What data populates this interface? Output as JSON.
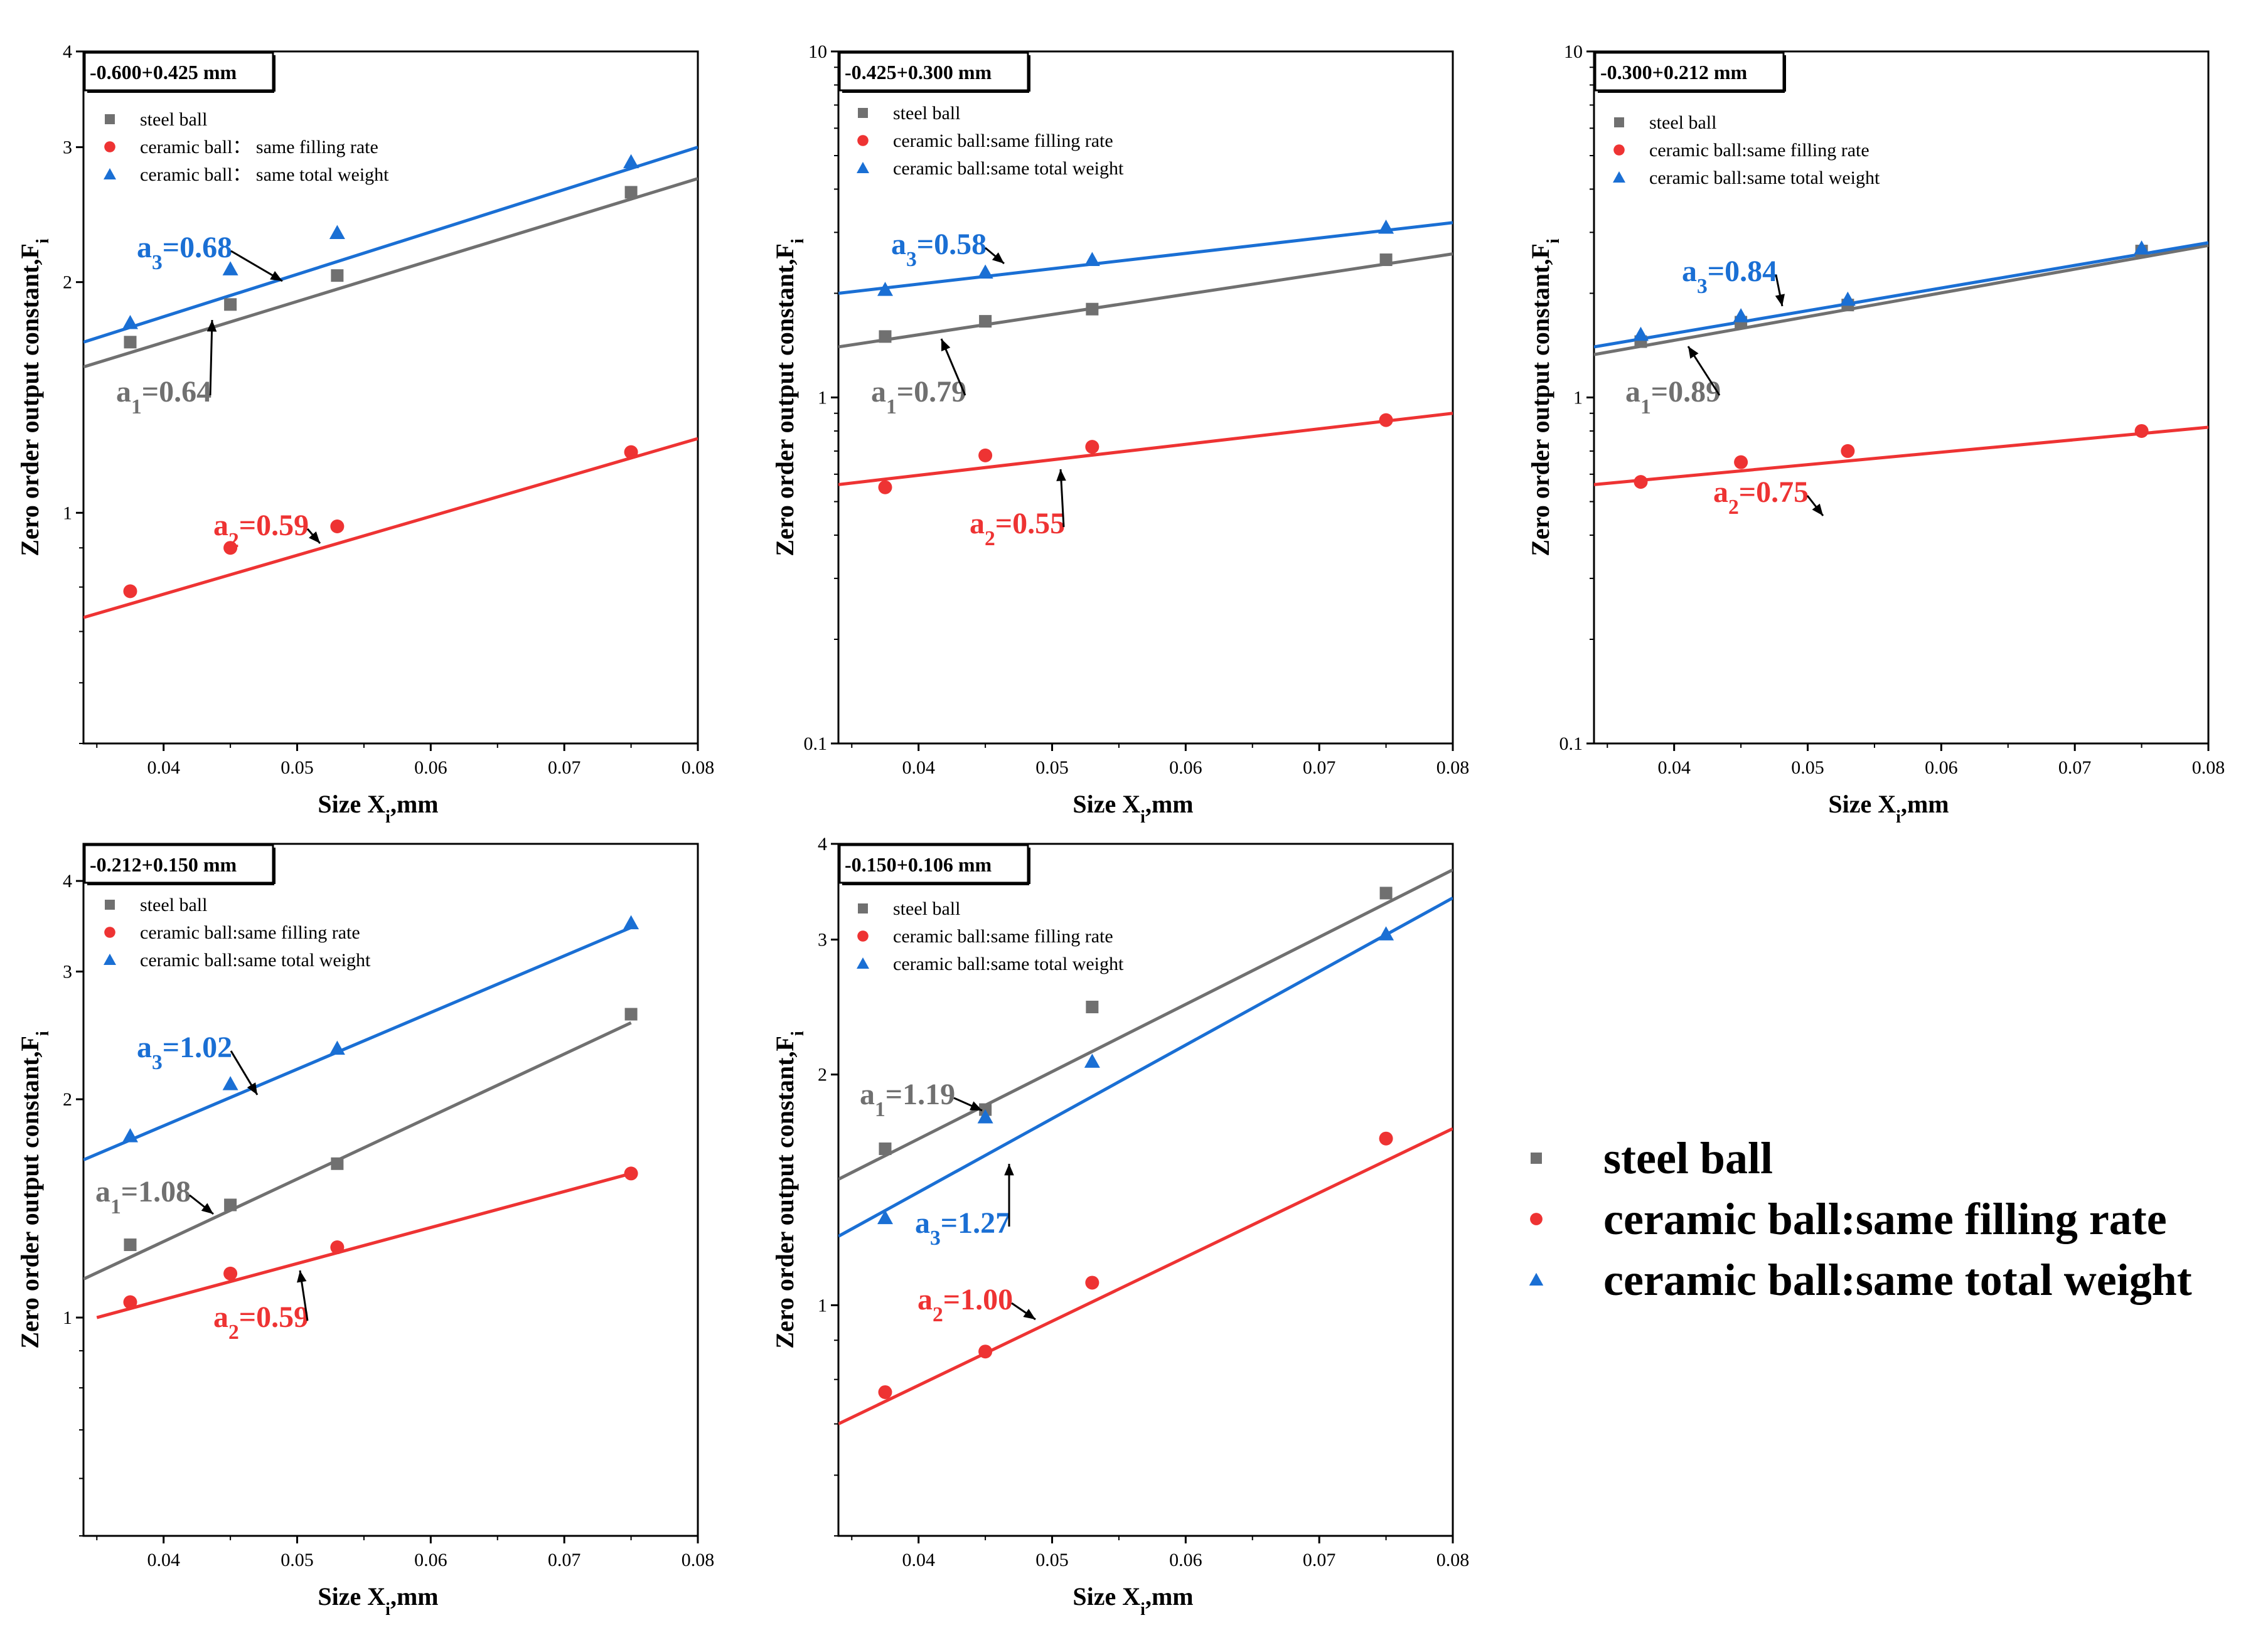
{
  "colors": {
    "steel": "#707070",
    "filling": "#ee3333",
    "weight": "#1a6fd4",
    "axis": "#000000"
  },
  "figure_legend": {
    "steel": "steel ball",
    "filling": "ceramic ball:same filling rate",
    "weight": "ceramic ball:same total weight"
  },
  "chart_data": [
    {
      "type": "scatter",
      "title": "-0.600+0.425 mm",
      "xlabel_main": "Size X",
      "xlabel_sub": "i",
      "xlabel_tail": ",mm",
      "ylabel_main": "Zero order output constant,F",
      "ylabel_sub": "i",
      "xlim": [
        0.034,
        0.08
      ],
      "ylim": [
        0.5,
        4
      ],
      "yscale": "log",
      "xticks": [
        0.04,
        0.05,
        0.06,
        0.07,
        0.08
      ],
      "xtick_labels": [
        "0.04",
        "0.05",
        "0.06",
        "0.07",
        "0.08"
      ],
      "yticks": [
        1,
        2,
        3,
        4
      ],
      "ytick_labels": [
        "1",
        "2",
        "3",
        "4"
      ],
      "legend": [
        "steel ball",
        "ceramic ball： same filling rate",
        "ceramic ball： same total weight"
      ],
      "x": [
        0.0375,
        0.045,
        0.053,
        0.075
      ],
      "series": [
        {
          "name": "steel ball",
          "key": "steel",
          "marker": "square",
          "values": [
            1.67,
            1.87,
            2.04,
            2.62
          ],
          "fit": [
            [
              0.034,
              1.55
            ],
            [
              0.08,
              2.73
            ]
          ]
        },
        {
          "name": "ceramic ball: same filling rate",
          "key": "filling",
          "marker": "circle",
          "values": [
            0.79,
            0.9,
            0.96,
            1.2
          ],
          "fit": [
            [
              0.034,
              0.73
            ],
            [
              0.08,
              1.25
            ]
          ]
        },
        {
          "name": "ceramic ball: same total weight",
          "key": "weight",
          "marker": "triangle",
          "values": [
            1.77,
            2.08,
            2.32,
            2.87
          ],
          "fit": [
            [
              0.034,
              1.67
            ],
            [
              0.08,
              3.0
            ]
          ]
        }
      ],
      "annotations": [
        {
          "key": "weight",
          "text_main": "a",
          "text_sub": "3",
          "text_tail": "=0.68"
        },
        {
          "key": "steel",
          "text_main": "a",
          "text_sub": "1",
          "text_tail": "=0.64"
        },
        {
          "key": "filling",
          "text_main": "a",
          "text_sub": "2",
          "text_tail": "=0.59"
        }
      ]
    },
    {
      "type": "scatter",
      "title": "-0.425+0.300 mm",
      "xlabel_main": "Size X",
      "xlabel_sub": "i",
      "xlabel_tail": ",mm",
      "ylabel_main": "Zero order output constant,F",
      "ylabel_sub": "i",
      "xlim": [
        0.034,
        0.08
      ],
      "ylim": [
        0.1,
        10
      ],
      "yscale": "log",
      "xticks": [
        0.04,
        0.05,
        0.06,
        0.07,
        0.08
      ],
      "xtick_labels": [
        "0.04",
        "0.05",
        "0.06",
        "0.07",
        "0.08"
      ],
      "yticks": [
        0.1,
        1,
        10
      ],
      "ytick_labels": [
        "0.1",
        "1",
        "10"
      ],
      "legend": [
        "steel ball",
        "ceramic ball:same filling rate",
        "ceramic ball:same total weight"
      ],
      "x": [
        0.0375,
        0.045,
        0.053,
        0.075
      ],
      "series": [
        {
          "name": "steel ball",
          "key": "steel",
          "marker": "square",
          "values": [
            1.5,
            1.66,
            1.8,
            2.5
          ],
          "fit": [
            [
              0.034,
              1.4
            ],
            [
              0.08,
              2.6
            ]
          ]
        },
        {
          "name": "ceramic ball:same filling rate",
          "key": "filling",
          "marker": "circle",
          "values": [
            0.55,
            0.68,
            0.72,
            0.86
          ],
          "fit": [
            [
              0.034,
              0.56
            ],
            [
              0.08,
              0.9
            ]
          ]
        },
        {
          "name": "ceramic ball:same total weight",
          "key": "weight",
          "marker": "triangle",
          "values": [
            2.05,
            2.3,
            2.5,
            3.1
          ],
          "fit": [
            [
              0.034,
              2.0
            ],
            [
              0.08,
              3.2
            ]
          ]
        }
      ],
      "annotations": [
        {
          "key": "weight",
          "text_main": "a",
          "text_sub": "3",
          "text_tail": "=0.58"
        },
        {
          "key": "steel",
          "text_main": "a",
          "text_sub": "1",
          "text_tail": "=0.79"
        },
        {
          "key": "filling",
          "text_main": "a",
          "text_sub": "2",
          "text_tail": "=0.55"
        }
      ]
    },
    {
      "type": "scatter",
      "title": "-0.300+0.212 mm",
      "xlabel_main": "Size X",
      "xlabel_sub": "i",
      "xlabel_tail": ",mm",
      "ylabel_main": "Zero order output constant,F",
      "ylabel_sub": "i",
      "xlim": [
        0.034,
        0.08
      ],
      "ylim": [
        0.1,
        10
      ],
      "yscale": "log",
      "xticks": [
        0.04,
        0.05,
        0.06,
        0.07,
        0.08
      ],
      "xtick_labels": [
        "0.04",
        "0.05",
        "0.06",
        "0.07",
        "0.08"
      ],
      "yticks": [
        0.1,
        1,
        10
      ],
      "ytick_labels": [
        "0.1",
        "1",
        "10"
      ],
      "legend": [
        "steel ball",
        "ceramic ball:same filling rate",
        "ceramic ball:same total weight"
      ],
      "x": [
        0.0375,
        0.045,
        0.053,
        0.075
      ],
      "series": [
        {
          "name": "steel ball",
          "key": "steel",
          "marker": "square",
          "values": [
            1.45,
            1.65,
            1.85,
            2.65
          ],
          "fit": [
            [
              0.034,
              1.33
            ],
            [
              0.08,
              2.75
            ]
          ]
        },
        {
          "name": "ceramic ball:same filling rate",
          "key": "filling",
          "marker": "circle",
          "values": [
            0.57,
            0.65,
            0.7,
            0.8
          ],
          "fit": [
            [
              0.034,
              0.56
            ],
            [
              0.08,
              0.82
            ]
          ]
        },
        {
          "name": "ceramic ball:same total weight",
          "key": "weight",
          "marker": "triangle",
          "values": [
            1.52,
            1.72,
            1.92,
            2.7
          ],
          "fit": [
            [
              0.034,
              1.4
            ],
            [
              0.08,
              2.8
            ]
          ]
        }
      ],
      "annotations": [
        {
          "key": "weight",
          "text_main": "a",
          "text_sub": "3",
          "text_tail": "=0.84"
        },
        {
          "key": "steel",
          "text_main": "a",
          "text_sub": "1",
          "text_tail": "=0.89"
        },
        {
          "key": "filling",
          "text_main": "a",
          "text_sub": "2",
          "text_tail": "=0.75"
        }
      ]
    },
    {
      "type": "scatter",
      "title": "-0.212+0.150 mm",
      "xlabel_main": "Size X",
      "xlabel_sub": "i",
      "xlabel_tail": ",mm",
      "ylabel_main": "Zero order output constant,F",
      "ylabel_sub": "i",
      "xlim": [
        0.034,
        0.08
      ],
      "ylim": [
        0.5,
        4.5
      ],
      "yscale": "log",
      "xticks": [
        0.04,
        0.05,
        0.06,
        0.07,
        0.08
      ],
      "xtick_labels": [
        "0.04",
        "0.05",
        "0.06",
        "0.07",
        "0.08"
      ],
      "yticks": [
        1,
        2,
        3,
        4
      ],
      "ytick_labels": [
        "1",
        "2",
        "3",
        "4"
      ],
      "legend": [
        "steel ball",
        "ceramic ball:same filling rate",
        "ceramic ball:same total weight"
      ],
      "x": [
        0.0375,
        0.045,
        0.053,
        0.075
      ],
      "series": [
        {
          "name": "steel ball",
          "key": "steel",
          "marker": "square",
          "values": [
            1.26,
            1.43,
            1.63,
            2.62
          ],
          "fit": [
            [
              0.034,
              1.13
            ],
            [
              0.075,
              2.55
            ]
          ]
        },
        {
          "name": "ceramic ball:same filling rate",
          "key": "filling",
          "marker": "circle",
          "values": [
            1.05,
            1.15,
            1.25,
            1.58
          ],
          "fit": [
            [
              0.035,
              1.0
            ],
            [
              0.075,
              1.58
            ]
          ]
        },
        {
          "name": "ceramic ball:same total weight",
          "key": "weight",
          "marker": "triangle",
          "values": [
            1.78,
            2.1,
            2.35,
            3.5
          ],
          "fit": [
            [
              0.034,
              1.65
            ],
            [
              0.075,
              3.45
            ]
          ]
        }
      ],
      "annotations": [
        {
          "key": "weight",
          "text_main": "a",
          "text_sub": "3",
          "text_tail": "=1.02"
        },
        {
          "key": "steel",
          "text_main": "a",
          "text_sub": "1",
          "text_tail": "=1.08"
        },
        {
          "key": "filling",
          "text_main": "a",
          "text_sub": "2",
          "text_tail": "=0.59"
        }
      ]
    },
    {
      "type": "scatter",
      "title": "-0.150+0.106 mm",
      "xlabel_main": "Size X",
      "xlabel_sub": "i",
      "xlabel_tail": ",mm",
      "ylabel_main": "Zero order output constant,F",
      "ylabel_sub": "i",
      "xlim": [
        0.034,
        0.08
      ],
      "ylim": [
        0.5,
        4
      ],
      "yscale": "log",
      "xticks": [
        0.04,
        0.05,
        0.06,
        0.07,
        0.08
      ],
      "xtick_labels": [
        "0.04",
        "0.05",
        "0.06",
        "0.07",
        "0.08"
      ],
      "yticks": [
        1,
        2,
        3,
        4
      ],
      "ytick_labels": [
        "1",
        "2",
        "3",
        "4"
      ],
      "legend": [
        "steel ball",
        "ceramic ball:same filling rate",
        "ceramic ball:same total weight"
      ],
      "x": [
        0.0375,
        0.045,
        0.053,
        0.075
      ],
      "series": [
        {
          "name": "steel ball",
          "key": "steel",
          "marker": "square",
          "values": [
            1.6,
            1.8,
            2.45,
            3.45
          ],
          "fit": [
            [
              0.034,
              1.46
            ],
            [
              0.08,
              3.7
            ]
          ]
        },
        {
          "name": "ceramic ball:same filling rate",
          "key": "filling",
          "marker": "circle",
          "values": [
            0.77,
            0.87,
            1.07,
            1.65
          ],
          "fit": [
            [
              0.034,
              0.7
            ],
            [
              0.08,
              1.7
            ]
          ]
        },
        {
          "name": "ceramic ball:same total weight",
          "key": "weight",
          "marker": "triangle",
          "values": [
            1.3,
            1.76,
            2.08,
            3.05
          ],
          "fit": [
            [
              0.034,
              1.23
            ],
            [
              0.08,
              3.4
            ]
          ]
        }
      ],
      "annotations": [
        {
          "key": "steel",
          "text_main": "a",
          "text_sub": "1",
          "text_tail": "=1.19"
        },
        {
          "key": "weight",
          "text_main": "a",
          "text_sub": "3",
          "text_tail": "=1.27"
        },
        {
          "key": "filling",
          "text_main": "a",
          "text_sub": "2",
          "text_tail": "=1.00"
        }
      ]
    }
  ]
}
